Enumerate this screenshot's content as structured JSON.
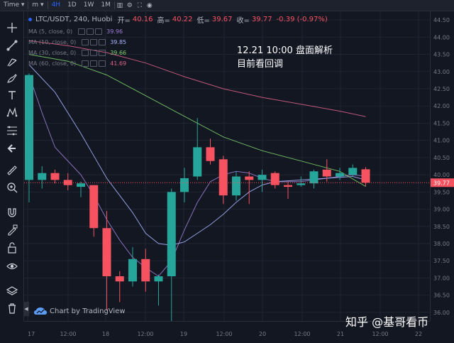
{
  "topbar": {
    "items": [
      {
        "label": "Time",
        "kind": "text"
      },
      {
        "label": "m",
        "kind": "text"
      },
      {
        "label": "4H",
        "kind": "active"
      },
      {
        "label": "1D",
        "kind": "text"
      },
      {
        "label": "1W",
        "kind": "text"
      },
      {
        "label": "1M",
        "kind": "text"
      }
    ],
    "icons": [
      "candles-icon",
      "settings-icon",
      "fullscreen-icon",
      "camera-icon"
    ]
  },
  "symbol": {
    "name": "LTC/USDT, 240, Huobi",
    "open_label": "开=",
    "open": "40.16",
    "high_label": "高=",
    "high": "40.22",
    "low_label": "低=",
    "low": "39.67",
    "close_label": "收=",
    "close": "39.77",
    "change": "-0.39 (-0.97%)"
  },
  "indicators": [
    {
      "label": "MA (5, close, 0)",
      "value": "39.96",
      "color": "#9c7fd6"
    },
    {
      "label": "MA (10, close, 0)",
      "value": "39.85",
      "color": "#aab6ff"
    },
    {
      "label": "MA (30, close, 0)",
      "value": "39.66",
      "color": "#7ed36b"
    },
    {
      "label": "MA (60, close, 0)",
      "value": "41.69",
      "color": "#e0638a"
    }
  ],
  "annotation": {
    "line1": "12.21 10:00 盘面解析",
    "line2": "目前看回调"
  },
  "branding": {
    "tradingview": "Chart by TradingView",
    "watermark": "知乎 @基哥看币"
  },
  "colors": {
    "up": "#26a69a",
    "down": "#f7525f",
    "background": "#131722",
    "accent": "#2962ff"
  },
  "toolbar_icons": [
    "crosshair-icon",
    "trend-line-icon",
    "pitchfork-icon",
    "brush-icon",
    "text-icon",
    "pattern-icon",
    "fib-icon",
    "arrow-left-icon",
    "ruler-icon",
    "zoom-in-icon",
    "magnet-icon",
    "lock-pencil-icon",
    "lock-icon",
    "eye-icon",
    "layers-icon",
    "trash-icon"
  ],
  "chart_data": {
    "type": "candlestick",
    "price_axis": {
      "ticks": [
        "44.50",
        "44.00",
        "43.50",
        "43.00",
        "42.50",
        "42.00",
        "41.50",
        "41.00",
        "40.50",
        "40.00",
        "39.50",
        "39.00",
        "38.50",
        "38.00",
        "37.50",
        "37.00",
        "36.50",
        "36.00"
      ],
      "min": 35.75,
      "max": 44.75,
      "current_price": "39.77"
    },
    "time_axis": {
      "labels": [
        "17",
        "12:00",
        "18",
        "12:00",
        "19",
        "12:00",
        "20",
        "12:00",
        "21",
        "12:00",
        "22"
      ]
    },
    "candles": [
      {
        "o": 39.85,
        "h": 42.95,
        "l": 39.2,
        "c": 42.9
      },
      {
        "o": 39.85,
        "h": 40.25,
        "l": 39.6,
        "c": 40.05
      },
      {
        "o": 40.05,
        "h": 40.15,
        "l": 39.75,
        "c": 39.85
      },
      {
        "o": 39.85,
        "h": 40.05,
        "l": 39.55,
        "c": 39.7
      },
      {
        "o": 39.65,
        "h": 39.8,
        "l": 39.35,
        "c": 39.75
      },
      {
        "o": 39.7,
        "h": 39.7,
        "l": 38.2,
        "c": 38.45
      },
      {
        "o": 38.45,
        "h": 38.95,
        "l": 36.05,
        "c": 37.05
      },
      {
        "o": 37.05,
        "h": 37.2,
        "l": 36.3,
        "c": 36.9
      },
      {
        "o": 36.9,
        "h": 37.9,
        "l": 36.75,
        "c": 37.55
      },
      {
        "o": 37.55,
        "h": 37.85,
        "l": 36.6,
        "c": 36.9
      },
      {
        "o": 36.9,
        "h": 37.1,
        "l": 36.2,
        "c": 37.05
      },
      {
        "o": 37.05,
        "h": 39.6,
        "l": 35.6,
        "c": 39.5
      },
      {
        "o": 39.5,
        "h": 40.2,
        "l": 39.2,
        "c": 39.9
      },
      {
        "o": 39.95,
        "h": 41.65,
        "l": 39.85,
        "c": 40.8
      },
      {
        "o": 40.8,
        "h": 41.05,
        "l": 40.3,
        "c": 40.4
      },
      {
        "o": 40.45,
        "h": 40.55,
        "l": 39.15,
        "c": 39.4
      },
      {
        "o": 39.4,
        "h": 40.1,
        "l": 39.25,
        "c": 39.95
      },
      {
        "o": 39.95,
        "h": 40.1,
        "l": 39.15,
        "c": 39.85
      },
      {
        "o": 39.85,
        "h": 40.15,
        "l": 39.5,
        "c": 40.0
      },
      {
        "o": 40.05,
        "h": 40.1,
        "l": 39.6,
        "c": 39.7
      },
      {
        "o": 39.7,
        "h": 39.8,
        "l": 39.3,
        "c": 39.65
      },
      {
        "o": 39.7,
        "h": 39.95,
        "l": 39.65,
        "c": 39.75
      },
      {
        "o": 39.75,
        "h": 40.15,
        "l": 39.6,
        "c": 40.1
      },
      {
        "o": 40.15,
        "h": 40.45,
        "l": 39.8,
        "c": 39.95
      },
      {
        "o": 39.95,
        "h": 40.2,
        "l": 39.85,
        "c": 40.05
      },
      {
        "o": 40.0,
        "h": 40.3,
        "l": 39.95,
        "c": 40.2
      },
      {
        "o": 40.16,
        "h": 40.22,
        "l": 39.67,
        "c": 39.77
      }
    ],
    "ma_series": [
      {
        "name": "MA (5, close, 0)",
        "color": "#9c7fd6",
        "points": [
          [
            0,
            42.9
          ],
          [
            1,
            41.8
          ],
          [
            2,
            40.8
          ],
          [
            4,
            40.0
          ],
          [
            5,
            39.4
          ],
          [
            6,
            38.7
          ],
          [
            7,
            38.1
          ],
          [
            8,
            37.6
          ],
          [
            9,
            37.3
          ],
          [
            10,
            37.05
          ],
          [
            11,
            37.5
          ],
          [
            12,
            38.4
          ],
          [
            13,
            39.2
          ],
          [
            14,
            39.8
          ],
          [
            15,
            40.0
          ],
          [
            16,
            40.1
          ],
          [
            17,
            40.05
          ],
          [
            18,
            39.9
          ],
          [
            19,
            39.8
          ],
          [
            20,
            39.8
          ],
          [
            21,
            39.8
          ],
          [
            22,
            39.85
          ],
          [
            23,
            39.9
          ],
          [
            24,
            39.95
          ],
          [
            25,
            40.0
          ],
          [
            26,
            39.96
          ]
        ]
      },
      {
        "name": "MA (10, close, 0)",
        "color": "#aab6ff",
        "points": [
          [
            0,
            43.2
          ],
          [
            2,
            42.4
          ],
          [
            4,
            41.2
          ],
          [
            6,
            39.9
          ],
          [
            8,
            38.9
          ],
          [
            9,
            38.3
          ],
          [
            10,
            38.0
          ],
          [
            11,
            37.95
          ],
          [
            12,
            38.05
          ],
          [
            13,
            38.3
          ],
          [
            14,
            38.55
          ],
          [
            15,
            38.85
          ],
          [
            16,
            39.2
          ],
          [
            17,
            39.5
          ],
          [
            18,
            39.7
          ],
          [
            19,
            39.8
          ],
          [
            21,
            39.85
          ],
          [
            23,
            39.9
          ],
          [
            25,
            39.95
          ],
          [
            26,
            39.85
          ]
        ]
      },
      {
        "name": "MA (30, close, 0)",
        "color": "#7ed36b",
        "points": [
          [
            0,
            43.5
          ],
          [
            3,
            43.3
          ],
          [
            6,
            42.9
          ],
          [
            9,
            42.3
          ],
          [
            12,
            41.7
          ],
          [
            15,
            41.1
          ],
          [
            18,
            40.7
          ],
          [
            21,
            40.4
          ],
          [
            24,
            40.1
          ],
          [
            26,
            39.66
          ]
        ]
      },
      {
        "name": "MA (60, close, 0)",
        "color": "#e0638a",
        "points": [
          [
            0,
            43.9
          ],
          [
            3,
            43.75
          ],
          [
            6,
            43.55
          ],
          [
            9,
            43.25
          ],
          [
            12,
            42.85
          ],
          [
            15,
            42.5
          ],
          [
            18,
            42.25
          ],
          [
            21,
            42.05
          ],
          [
            24,
            41.85
          ],
          [
            26,
            41.69
          ]
        ]
      }
    ]
  }
}
